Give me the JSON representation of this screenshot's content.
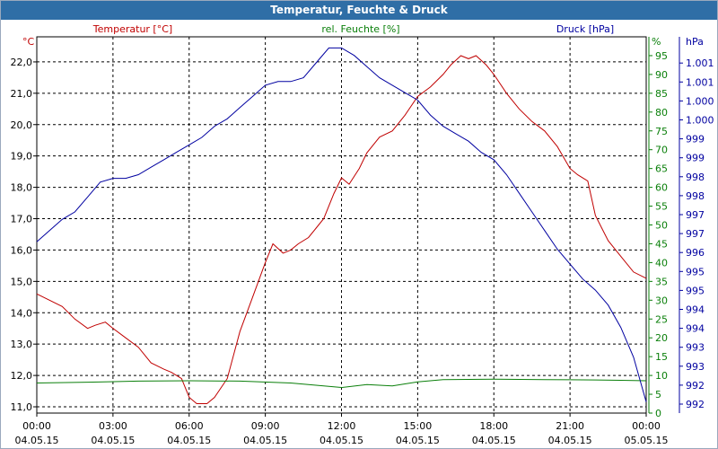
{
  "window": {
    "title": "Temperatur, Feuchte & Druck"
  },
  "colors": {
    "temperature": "#c00000",
    "humidity": "#0a7f0a",
    "pressure": "#0000a0",
    "axis": "#000000",
    "grid": "#000000"
  },
  "chart_data": {
    "type": "line",
    "title": "Temperatur, Feuchte & Druck",
    "x_ticks": [
      {
        "time": "00:00",
        "date": "04.05.15"
      },
      {
        "time": "03:00",
        "date": "04.05.15"
      },
      {
        "time": "06:00",
        "date": "04.05.15"
      },
      {
        "time": "09:00",
        "date": "04.05.15"
      },
      {
        "time": "12:00",
        "date": "04.05.15"
      },
      {
        "time": "15:00",
        "date": "04.05.15"
      },
      {
        "time": "18:00",
        "date": "04.05.15"
      },
      {
        "time": "21:00",
        "date": "04.05.15"
      },
      {
        "time": "00:00",
        "date": "05.05.15"
      }
    ],
    "x_range_hours": [
      0,
      24
    ],
    "axes": {
      "temperature": {
        "label": "Temperatur [°C]",
        "unit": "°C",
        "range": [
          10.8,
          22.8
        ],
        "ticks": [
          "11,0",
          "12,0",
          "13,0",
          "14,0",
          "15,0",
          "16,0",
          "17,0",
          "18,0",
          "19,0",
          "20,0",
          "21,0",
          "22,0"
        ]
      },
      "humidity": {
        "label": "rel. Feuchte [%]",
        "unit": "%",
        "range": [
          0,
          100
        ],
        "ticks": [
          "0",
          "5",
          "10",
          "15",
          "20",
          "25",
          "30",
          "35",
          "40",
          "45",
          "50",
          "55",
          "60",
          "65",
          "70",
          "75",
          "80",
          "85",
          "90",
          "95"
        ]
      },
      "pressure": {
        "label": "Druck [hPa]",
        "unit": "hPa",
        "range": [
          991.6,
          1001.7
        ],
        "ticks": [
          "992",
          "992",
          "993",
          "993",
          "994",
          "994",
          "995",
          "995",
          "996",
          "997",
          "997",
          "998",
          "998",
          "999",
          "999",
          "1.000",
          "1.000",
          "1.001",
          "1.001"
        ]
      }
    },
    "series": [
      {
        "name": "Temperatur",
        "unit": "°C",
        "x": [
          0,
          1,
          1.5,
          2,
          2.3,
          2.7,
          3,
          3.5,
          4,
          4.5,
          5,
          5.3,
          5.7,
          6,
          6.3,
          6.7,
          7,
          7.5,
          8,
          8.5,
          9,
          9.3,
          9.7,
          10,
          10.3,
          10.7,
          11,
          11.3,
          11.7,
          12,
          12.3,
          12.7,
          13,
          13.5,
          14,
          14.5,
          15,
          15.5,
          16,
          16.3,
          16.7,
          17,
          17.3,
          17.7,
          18,
          18.5,
          19,
          19.5,
          20,
          20.5,
          21,
          21.3,
          21.7,
          22,
          22.5,
          23,
          23.5,
          24
        ],
        "values": [
          14.6,
          14.2,
          13.8,
          13.5,
          13.6,
          13.7,
          13.5,
          13.2,
          12.9,
          12.4,
          12.2,
          12.1,
          11.9,
          11.3,
          11.1,
          11.1,
          11.3,
          11.9,
          13.4,
          14.5,
          15.6,
          16.2,
          15.9,
          16.0,
          16.2,
          16.4,
          16.7,
          17.0,
          17.8,
          18.3,
          18.1,
          18.6,
          19.1,
          19.6,
          19.8,
          20.3,
          20.9,
          21.2,
          21.6,
          21.9,
          22.2,
          22.1,
          22.2,
          21.9,
          21.6,
          21.0,
          20.5,
          20.1,
          19.8,
          19.3,
          18.6,
          18.4,
          18.2,
          17.1,
          16.3,
          15.8,
          15.3,
          15.1
        ]
      },
      {
        "name": "rel. Feuchte",
        "unit": "%",
        "x": [
          0,
          2,
          4,
          6,
          8,
          10,
          11,
          12,
          13,
          14,
          15,
          16,
          18,
          20,
          22,
          23,
          24
        ],
        "values": [
          8.0,
          8.2,
          8.5,
          8.6,
          8.5,
          8.0,
          7.4,
          6.8,
          7.6,
          7.2,
          8.3,
          8.9,
          9.0,
          8.9,
          8.8,
          8.7,
          8.6
        ]
      },
      {
        "name": "Druck",
        "unit": "hPa",
        "x": [
          0,
          1,
          1.5,
          2,
          2.5,
          3,
          3.5,
          4,
          4.5,
          5,
          5.5,
          6,
          6.5,
          7,
          7.5,
          8,
          8.5,
          9,
          9.5,
          10,
          10.5,
          11,
          11.5,
          12,
          12.5,
          13,
          13.5,
          14,
          14.5,
          15,
          15.5,
          16,
          16.5,
          17,
          17.5,
          18,
          18.5,
          19,
          19.5,
          20,
          20.5,
          21,
          21.5,
          22,
          22.5,
          23,
          23.5,
          24
        ],
        "values": [
          996.2,
          996.8,
          997.0,
          997.4,
          997.8,
          997.9,
          997.9,
          998.0,
          998.2,
          998.4,
          998.6,
          998.8,
          999.0,
          999.3,
          999.5,
          999.8,
          1000.1,
          1000.4,
          1000.5,
          1000.5,
          1000.6,
          1001.0,
          1001.4,
          1001.4,
          1001.2,
          1000.9,
          1000.6,
          1000.4,
          1000.2,
          1000.0,
          999.6,
          999.3,
          999.1,
          998.9,
          998.6,
          998.4,
          998.0,
          997.5,
          997.0,
          996.5,
          996.0,
          995.6,
          995.2,
          994.9,
          994.5,
          993.9,
          993.1,
          991.9
        ]
      }
    ]
  }
}
